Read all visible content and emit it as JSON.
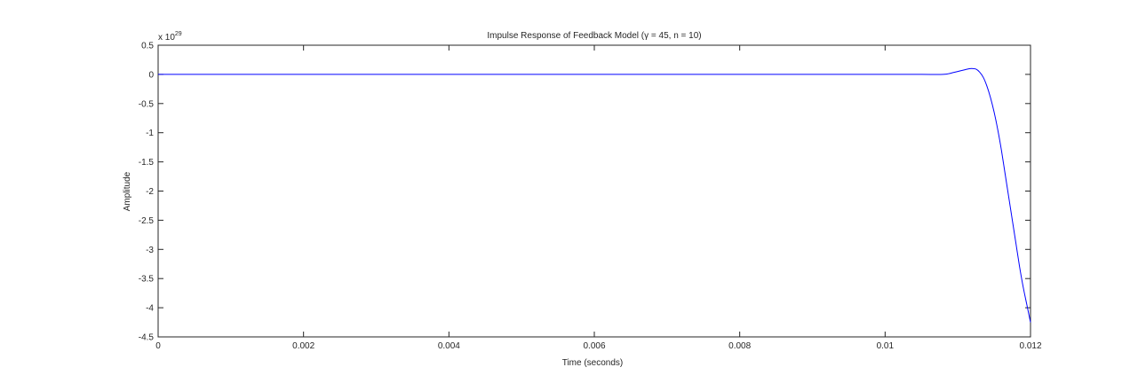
{
  "chart_data": {
    "type": "line",
    "title": "Impulse Response of Feedback Model (γ = 45, n = 10)",
    "xlabel": "Time (seconds)",
    "ylabel": "Amplitude",
    "y_exponent_base": "x 10",
    "y_exponent_power": "29",
    "xlim": [
      0,
      0.012
    ],
    "ylim": [
      -4.5,
      0.5
    ],
    "x_ticks": [
      0,
      0.002,
      0.004,
      0.006,
      0.008,
      0.01,
      0.012
    ],
    "x_tick_labels": [
      "0",
      "0.002",
      "0.004",
      "0.006",
      "0.008",
      "0.01",
      "0.012"
    ],
    "y_ticks": [
      0.5,
      0,
      -0.5,
      -1,
      -1.5,
      -2,
      -2.5,
      -3,
      -3.5,
      -4,
      -4.5
    ],
    "y_tick_labels": [
      "0.5",
      "0",
      "-0.5",
      "-1",
      "-1.5",
      "-2",
      "-2.5",
      "-3",
      "-3.5",
      "-4",
      "-4.5"
    ],
    "grid": false,
    "line_color": "#0000ff",
    "series": [
      {
        "x": [
          0,
          0.001,
          0.002,
          0.003,
          0.004,
          0.005,
          0.006,
          0.007,
          0.008,
          0.009,
          0.01,
          0.0105,
          0.0108,
          0.0109,
          0.011,
          0.0111,
          0.01115,
          0.0112,
          0.01125,
          0.0113,
          0.01135,
          0.0114,
          0.01145,
          0.0115,
          0.01155,
          0.0116,
          0.01165,
          0.0117,
          0.01175,
          0.0118,
          0.01185,
          0.0119,
          0.01195,
          0.012
        ],
        "y": [
          0,
          0,
          0,
          0,
          0,
          0,
          0,
          0,
          0,
          0,
          0,
          0,
          0,
          0.02,
          0.05,
          0.08,
          0.095,
          0.1,
          0.09,
          0.04,
          -0.05,
          -0.2,
          -0.4,
          -0.65,
          -0.95,
          -1.3,
          -1.7,
          -2.1,
          -2.5,
          -2.9,
          -3.3,
          -3.65,
          -3.95,
          -4.25
        ]
      }
    ]
  }
}
